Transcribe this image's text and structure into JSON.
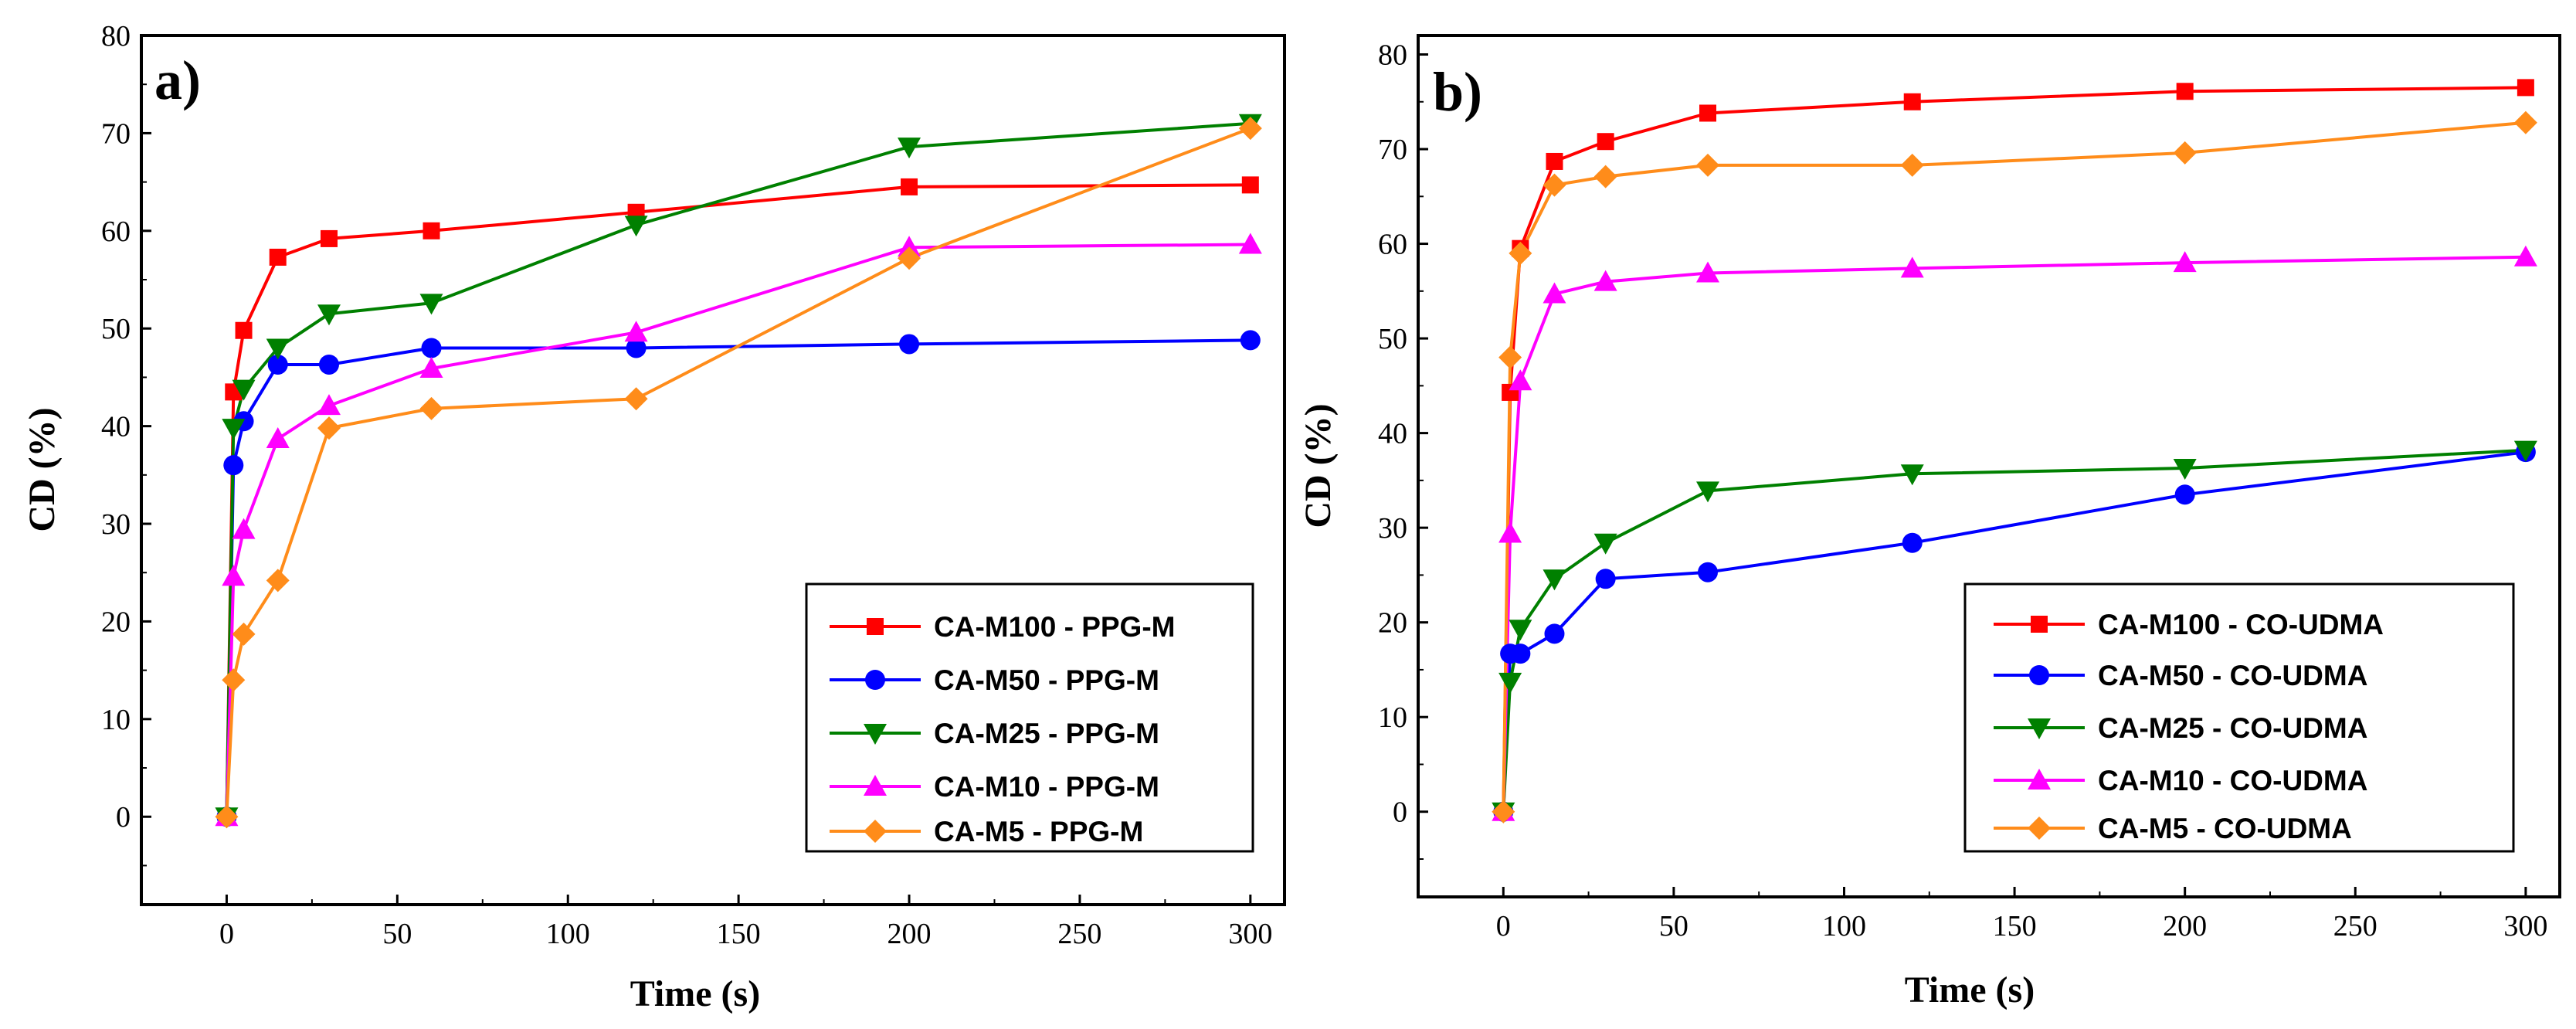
{
  "chart_data": [
    {
      "type": "line",
      "panel_label": "a)",
      "xlabel": "Time (s)",
      "ylabel": "CD (%)",
      "xlim": [
        -25,
        310
      ],
      "ylim": [
        -9,
        80
      ],
      "xticks": [
        0,
        50,
        100,
        150,
        200,
        250,
        300
      ],
      "yticks": [
        0,
        10,
        20,
        30,
        40,
        50,
        60,
        70,
        80
      ],
      "legend_position": "bottom-right",
      "x": [
        0,
        2,
        5,
        15,
        30,
        60,
        120,
        200,
        300
      ],
      "series": [
        {
          "name": "CA-M100 - PPG-M",
          "color": "#ff0000",
          "marker": "square",
          "values": [
            0,
            43.5,
            49.8,
            57.3,
            59.2,
            60.0,
            61.9,
            64.5,
            64.7
          ]
        },
        {
          "name": "CA-M50 - PPG-M",
          "color": "#0000ff",
          "marker": "circle",
          "values": [
            0,
            36.0,
            40.5,
            46.3,
            46.3,
            48.0,
            48.0,
            48.4,
            48.8
          ]
        },
        {
          "name": "CA-M25 - PPG-M",
          "color": "#008000",
          "marker": "triangle-down",
          "values": [
            0,
            39.8,
            43.8,
            48.0,
            51.5,
            52.6,
            60.6,
            68.6,
            71.0
          ]
        },
        {
          "name": "CA-M10 - PPG-M",
          "color": "#ff00ff",
          "marker": "triangle-up",
          "values": [
            0,
            24.6,
            29.4,
            38.7,
            42.1,
            45.9,
            49.6,
            58.3,
            58.6
          ]
        },
        {
          "name": "CA-M5 - PPG-M",
          "color": "#ff8c1a",
          "marker": "diamond",
          "values": [
            0,
            14.0,
            18.7,
            24.2,
            39.8,
            41.8,
            42.8,
            57.2,
            70.5
          ]
        }
      ]
    },
    {
      "type": "line",
      "panel_label": "b)",
      "xlabel": "Time (s)",
      "ylabel": "CD (%)",
      "xlim": [
        -25,
        310
      ],
      "ylim": [
        -9,
        82
      ],
      "xticks": [
        0,
        50,
        100,
        150,
        200,
        250,
        300
      ],
      "yticks": [
        0,
        10,
        20,
        30,
        40,
        50,
        60,
        70,
        80
      ],
      "legend_position": "bottom-right",
      "x": [
        0,
        2,
        5,
        15,
        30,
        60,
        120,
        200,
        300
      ],
      "series": [
        {
          "name": "CA-M100 - CO-UDMA",
          "color": "#ff0000",
          "marker": "square",
          "values": [
            0,
            44.3,
            59.5,
            68.7,
            70.8,
            73.8,
            75.0,
            76.1,
            76.5
          ]
        },
        {
          "name": "CA-M50 - CO-UDMA",
          "color": "#0000ff",
          "marker": "circle",
          "values": [
            0,
            16.7,
            16.7,
            18.8,
            24.6,
            25.3,
            28.4,
            33.5,
            38.0
          ]
        },
        {
          "name": "CA-M25 - CO-UDMA",
          "color": "#008000",
          "marker": "triangle-down",
          "values": [
            0,
            13.7,
            19.3,
            24.6,
            28.4,
            33.9,
            35.7,
            36.3,
            38.2
          ]
        },
        {
          "name": "CA-M10 - CO-UDMA",
          "color": "#ff00ff",
          "marker": "triangle-up",
          "values": [
            0,
            29.4,
            45.5,
            54.7,
            56.0,
            56.9,
            57.4,
            58.0,
            58.6
          ]
        },
        {
          "name": "CA-M5 - CO-UDMA",
          "color": "#ff8c1a",
          "marker": "diamond",
          "values": [
            0,
            48.0,
            59.0,
            66.2,
            67.1,
            68.3,
            68.3,
            69.6,
            72.8
          ]
        }
      ]
    }
  ]
}
